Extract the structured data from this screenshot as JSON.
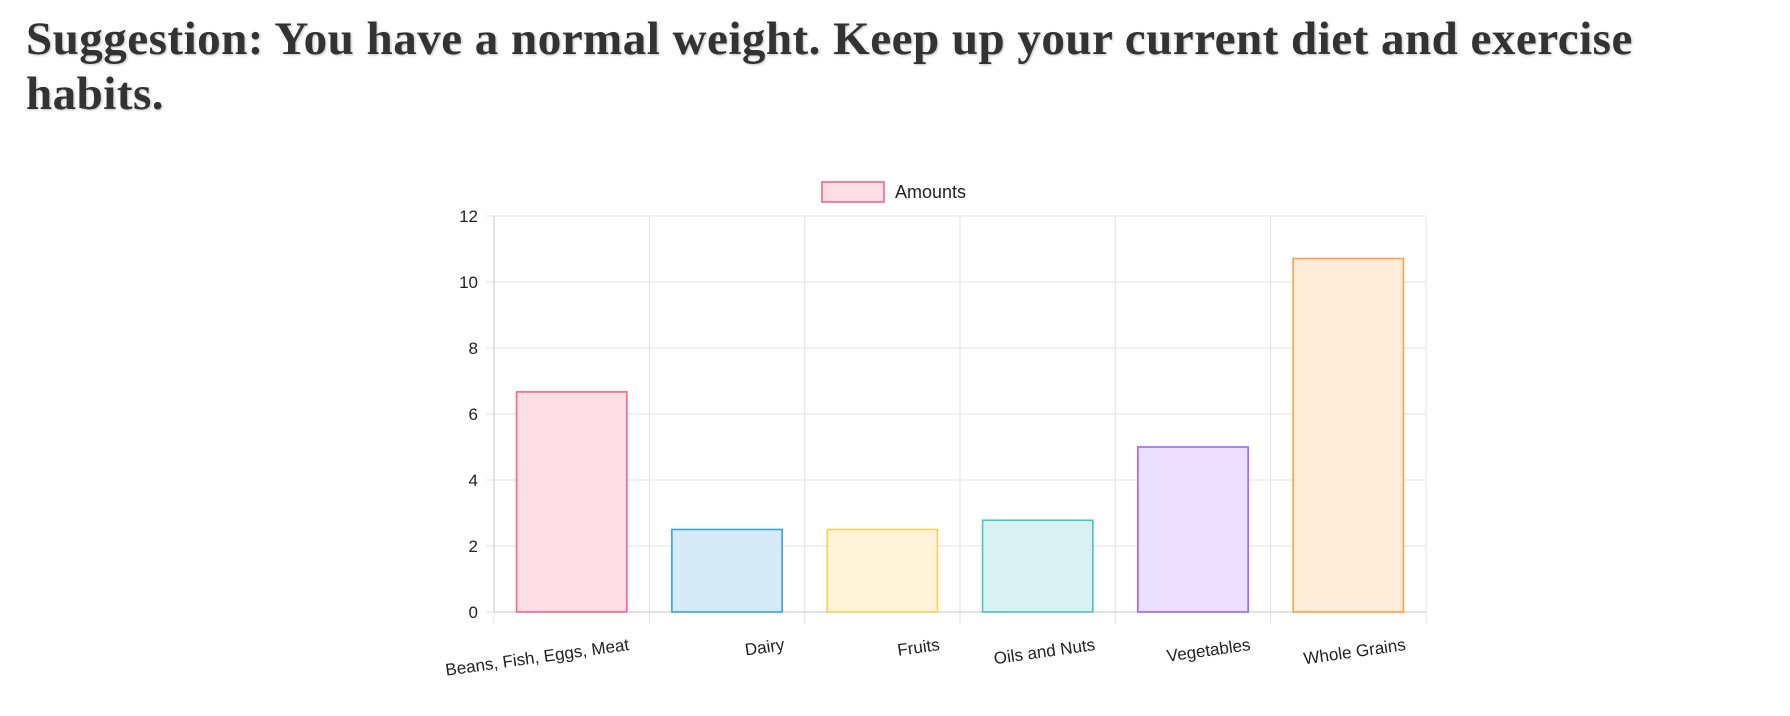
{
  "suggestion": {
    "text": "Suggestion: You have a normal weight. Keep up your current diet and exercise habits."
  },
  "chart_data": {
    "type": "bar",
    "categories": [
      "Beans, Fish, Eggs, Meat",
      "Dairy",
      "Fruits",
      "Oils and Nuts",
      "Vegetables",
      "Whole Grains"
    ],
    "series": [
      {
        "name": "Amounts",
        "values": [
          6.67,
          2.5,
          2.5,
          2.78,
          5,
          10.71
        ]
      }
    ],
    "ylim": [
      0,
      12
    ],
    "yticks": [
      0,
      2,
      4,
      6,
      8,
      10,
      12
    ],
    "grid": true,
    "legend": "top-center",
    "colors": {
      "fills": [
        "#ffdfe6",
        "#d6eaf8",
        "#fff4da",
        "#d9f1f1",
        "#ebe0ff",
        "#ffecd9"
      ],
      "borders": [
        "#ff6384",
        "#36a2eb",
        "#ffce56",
        "#4bc0c0",
        "#9966ff",
        "#ff9f40"
      ],
      "legend_fill": "#ffdfe6",
      "legend_border": "#ff6384"
    }
  }
}
